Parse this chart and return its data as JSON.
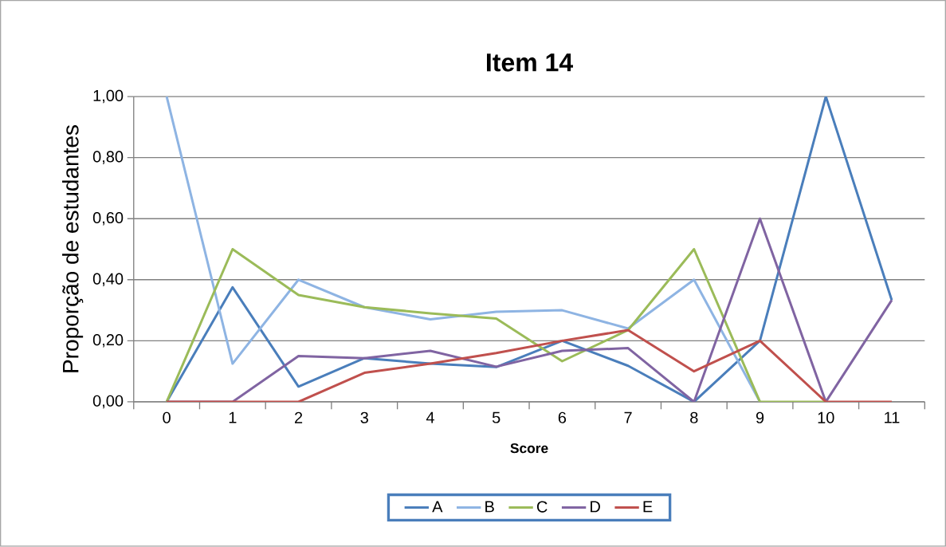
{
  "chart_data": {
    "type": "line",
    "title": "Item 14",
    "xlabel": "Score",
    "ylabel": "Proporção de estudantes",
    "categories": [
      "0",
      "1",
      "2",
      "3",
      "4",
      "5",
      "6",
      "7",
      "8",
      "9",
      "10",
      "11"
    ],
    "series": [
      {
        "name": "A",
        "color": "#4a7ebb",
        "values": [
          0,
          0.375,
          0.05,
          0.143,
          0.125,
          0.114,
          0.2,
          0.118,
          0,
          0.2,
          1.0,
          0.333
        ]
      },
      {
        "name": "B",
        "color": "#8eb4e3",
        "values": [
          1.0,
          0.125,
          0.4,
          0.31,
          0.27,
          0.295,
          0.3,
          0.24,
          0.4,
          0,
          null,
          null
        ]
      },
      {
        "name": "C",
        "color": "#9bbb59",
        "values": [
          0,
          0.5,
          0.35,
          0.31,
          0.29,
          0.273,
          0.133,
          0.235,
          0.5,
          0,
          0,
          null
        ]
      },
      {
        "name": "D",
        "color": "#8064a2",
        "values": [
          0,
          0,
          0.15,
          0.143,
          0.167,
          0.115,
          0.167,
          0.176,
          0,
          0.6,
          0,
          0.333
        ]
      },
      {
        "name": "E",
        "color": "#c0504d",
        "values": [
          0,
          0,
          0,
          0.095,
          0.125,
          0.16,
          0.2,
          0.235,
          0.1,
          0.2,
          0,
          0
        ]
      }
    ],
    "ylim": [
      0,
      1
    ],
    "yticks": [
      {
        "value": 0,
        "label": "0,00"
      },
      {
        "value": 0.2,
        "label": "0,20"
      },
      {
        "value": 0.4,
        "label": "0,40"
      },
      {
        "value": 0.6,
        "label": "0,60"
      },
      {
        "value": 0.8,
        "label": "0,80"
      },
      {
        "value": 1,
        "label": "1,00"
      }
    ],
    "grid": "y",
    "legend": "bottom",
    "marker": "none",
    "line_style": "solid"
  }
}
